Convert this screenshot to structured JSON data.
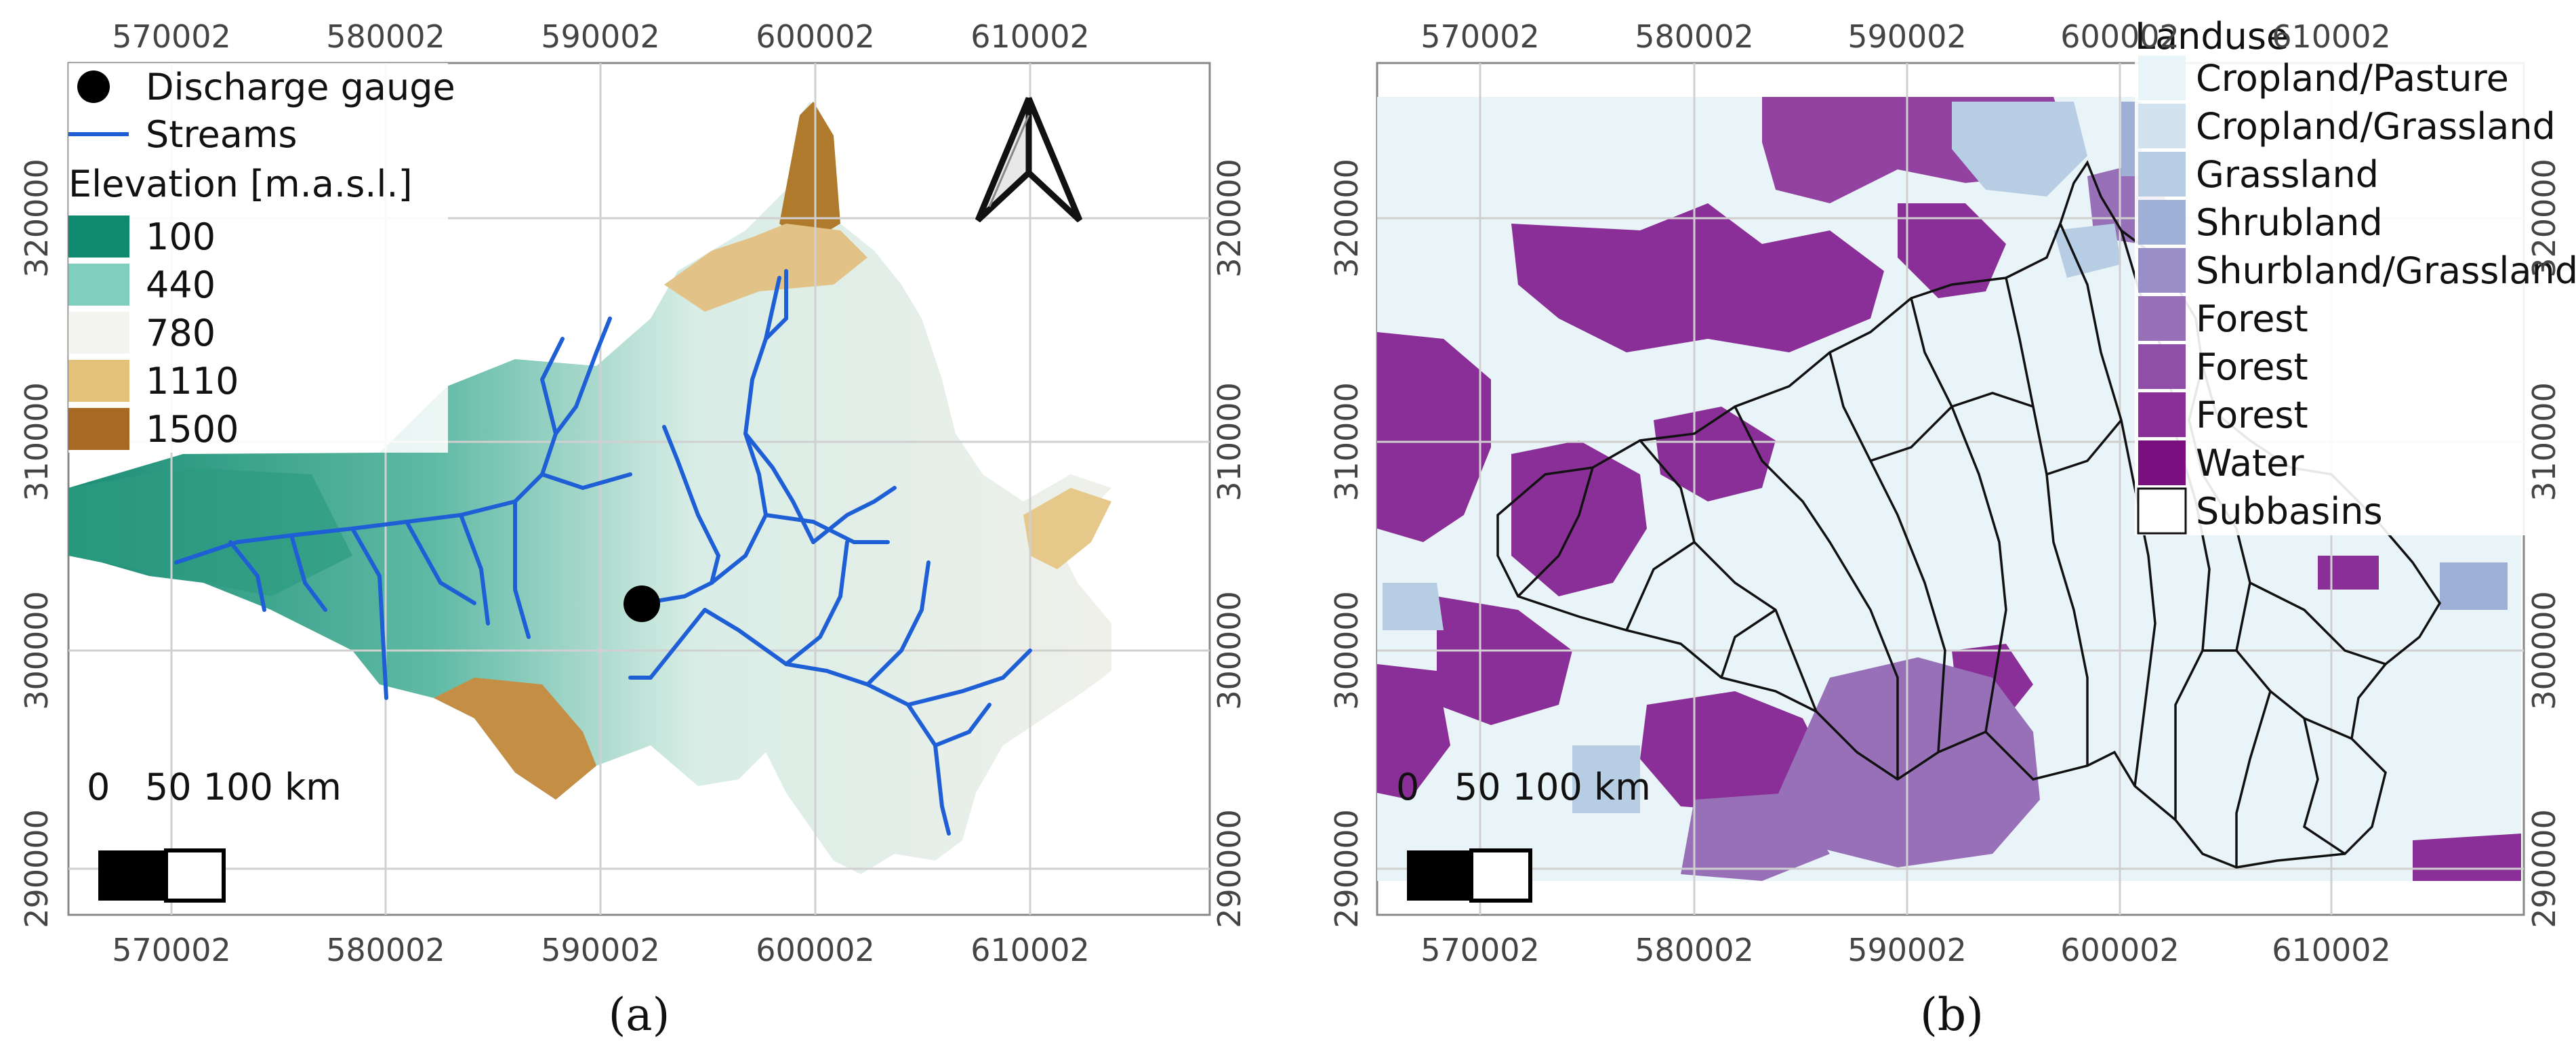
{
  "panel_a": {
    "x_ticks": [
      "570002",
      "580002",
      "590002",
      "600002",
      "610002"
    ],
    "y_ticks": [
      "320000",
      "310000",
      "300000",
      "290000"
    ],
    "legend": {
      "gauge_label": "Discharge gauge",
      "streams_label": "Streams",
      "elevation_title": "Elevation [m.a.s.l.]",
      "classes": [
        {
          "label": "100",
          "color": "#0f8a6e"
        },
        {
          "label": "440",
          "color": "#7fcfbf"
        },
        {
          "label": "780",
          "color": "#f4f4f1"
        },
        {
          "label": "1110",
          "color": "#e4c27a"
        },
        {
          "label": "1500",
          "color": "#a86a22"
        }
      ]
    },
    "scale_bar": {
      "text": "0   50 100 km"
    },
    "north_arrow": "north-arrow-icon",
    "caption": "(a)"
  },
  "panel_b": {
    "x_ticks": [
      "570002",
      "580002",
      "590002",
      "600002",
      "610002"
    ],
    "y_ticks": [
      "320000",
      "310000",
      "300000",
      "290000"
    ],
    "legend": {
      "title": "Landuse",
      "classes": [
        {
          "label": "Cropland/Pasture",
          "color": "#e8f4f8"
        },
        {
          "label": "Cropland/Grassland",
          "color": "#d2e2ef"
        },
        {
          "label": "Grassland",
          "color": "#b7cde4"
        },
        {
          "label": "Shrubland",
          "color": "#9fb0d6"
        },
        {
          "label": "Shurbland/Grassland",
          "color": "#9a8ec8"
        },
        {
          "label": "Forest",
          "color": "#9770b8"
        },
        {
          "label": "Forest",
          "color": "#8f4fa8"
        },
        {
          "label": "Forest",
          "color": "#8a2f97"
        },
        {
          "label": "Water",
          "color": "#7a0f7f"
        },
        {
          "label": "Subbasins",
          "color": "#ffffff"
        }
      ]
    },
    "scale_bar": {
      "text": "0   50 100 km"
    },
    "caption": "(b)"
  },
  "colors": {
    "stream": "#1f5fd6",
    "gauge": "#000000",
    "grid": "#d0d0d0"
  }
}
